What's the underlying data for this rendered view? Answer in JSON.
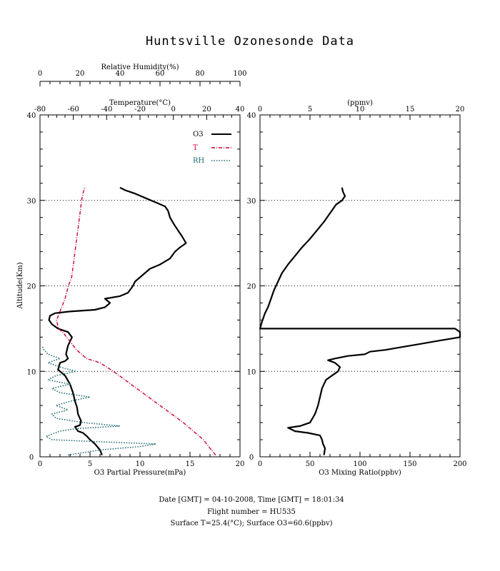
{
  "title": "Huntsville Ozonesonde Data",
  "footer": {
    "line1": "Date [GMT] = 04-10-2008,  Time [GMT] = 18:01:34",
    "line2": "Flight number = HU535",
    "line3": "Surface T=25.4(°C); Surface O3=60.6(ppbv)"
  },
  "colors": {
    "o3": "#000000",
    "temperature": "#cc0033",
    "rh": "#1f6b75",
    "grid": "#000000"
  },
  "left_panel": {
    "y_label": "Altitude(Km)",
    "y_ticks": [
      "0",
      "10",
      "20",
      "30",
      "40"
    ],
    "bottom_label": "O3 Partial Pressure(mPa)",
    "bottom_ticks": [
      "0",
      "5",
      "10",
      "15",
      "20"
    ],
    "temp_label": "Temperature(°C)",
    "temp_ticks": [
      "-80",
      "-60",
      "-40",
      "-20",
      "0",
      "20",
      "40"
    ],
    "rh_label": "Relative Humidity(%)",
    "rh_ticks": [
      "0",
      "20",
      "40",
      "60",
      "80",
      "100"
    ],
    "legend": [
      {
        "label": "O3",
        "style": "solid"
      },
      {
        "label": "T",
        "style": "dashdot"
      },
      {
        "label": "RH",
        "style": "dotted"
      }
    ]
  },
  "right_panel": {
    "bottom_label": "O3 Mixing Ratio(ppbv)",
    "bottom_ticks": [
      "0",
      "50",
      "100",
      "150",
      "200"
    ],
    "top_label": "(ppmv)",
    "top_ticks": [
      "0",
      "5",
      "10",
      "15",
      "20"
    ],
    "y_ticks": [
      "0",
      "10",
      "20",
      "30",
      "40"
    ]
  },
  "chart_data": [
    {
      "type": "line",
      "ylabel": "Altitude(Km)",
      "ylim": [
        0,
        40
      ],
      "grid_y": [
        10,
        20,
        30
      ],
      "series": [
        {
          "name": "O3",
          "axis": "O3 Partial Pressure(mPa)",
          "xlim": [
            0,
            20
          ],
          "points": [
            [
              6.2,
              0.2
            ],
            [
              6.0,
              0.8
            ],
            [
              5.5,
              1.5
            ],
            [
              5.0,
              2.0
            ],
            [
              4.7,
              2.4
            ],
            [
              4.3,
              2.8
            ],
            [
              3.8,
              3.0
            ],
            [
              3.5,
              3.5
            ],
            [
              4.0,
              3.7
            ],
            [
              4.1,
              4.2
            ],
            [
              3.8,
              5.0
            ],
            [
              3.7,
              5.8
            ],
            [
              3.5,
              6.5
            ],
            [
              3.3,
              7.5
            ],
            [
              3.0,
              8.5
            ],
            [
              2.5,
              9.5
            ],
            [
              1.8,
              10.2
            ],
            [
              2.0,
              11.0
            ],
            [
              2.5,
              11.2
            ],
            [
              2.8,
              11.5
            ],
            [
              2.6,
              12.0
            ],
            [
              2.8,
              13.0
            ],
            [
              3.0,
              13.5
            ],
            [
              3.2,
              14.0
            ],
            [
              2.8,
              14.6
            ],
            [
              1.8,
              15.0
            ],
            [
              1.2,
              15.5
            ],
            [
              0.9,
              16.0
            ],
            [
              1.0,
              16.5
            ],
            [
              1.5,
              16.8
            ],
            [
              3.0,
              17.0
            ],
            [
              5.5,
              17.2
            ],
            [
              6.5,
              17.5
            ],
            [
              7.0,
              18.0
            ],
            [
              6.5,
              18.5
            ],
            [
              8.0,
              18.8
            ],
            [
              8.8,
              19.2
            ],
            [
              9.3,
              20.0
            ],
            [
              9.5,
              20.5
            ],
            [
              10.0,
              21.0
            ],
            [
              10.5,
              21.5
            ],
            [
              11.0,
              22.0
            ],
            [
              12.0,
              22.5
            ],
            [
              13.0,
              23.2
            ],
            [
              13.5,
              24.0
            ],
            [
              14.0,
              24.5
            ],
            [
              14.6,
              25.0
            ],
            [
              14.2,
              25.8
            ],
            [
              13.8,
              26.5
            ],
            [
              13.4,
              27.2
            ],
            [
              13.0,
              28.0
            ],
            [
              12.8,
              28.8
            ],
            [
              12.5,
              29.3
            ],
            [
              11.5,
              29.8
            ],
            [
              10.5,
              30.3
            ],
            [
              9.5,
              30.8
            ],
            [
              8.5,
              31.2
            ],
            [
              8.0,
              31.5
            ]
          ]
        },
        {
          "name": "T",
          "axis": "Temperature(°C)",
          "xlim": [
            -80,
            40
          ],
          "points": [
            [
              25.4,
              0.2
            ],
            [
              22,
              1.0
            ],
            [
              18,
              2.0
            ],
            [
              12,
              3.0
            ],
            [
              6,
              4.0
            ],
            [
              -1,
              5.0
            ],
            [
              -8,
              6.0
            ],
            [
              -15,
              7.0
            ],
            [
              -22,
              8.0
            ],
            [
              -29,
              9.0
            ],
            [
              -36,
              10.0
            ],
            [
              -44,
              11.0
            ],
            [
              -52,
              11.5
            ],
            [
              -55,
              12.0
            ],
            [
              -58,
              12.5
            ],
            [
              -62,
              13.5
            ],
            [
              -64,
              14.0
            ],
            [
              -66,
              14.5
            ],
            [
              -69,
              15.0
            ],
            [
              -70,
              16.0
            ],
            [
              -68,
              17.0
            ],
            [
              -65,
              18.5
            ],
            [
              -63,
              20.0
            ],
            [
              -61,
              21.0
            ],
            [
              -60,
              22.5
            ],
            [
              -59,
              24.0
            ],
            [
              -58,
              25.5
            ],
            [
              -57,
              27.0
            ],
            [
              -56,
              28.5
            ],
            [
              -55,
              30.0
            ],
            [
              -54,
              31.0
            ],
            [
              -53,
              31.5
            ]
          ]
        },
        {
          "name": "RH",
          "axis": "Relative Humidity(%)",
          "xlim": [
            0,
            100
          ],
          "points": [
            [
              14,
              0.2
            ],
            [
              30,
              0.8
            ],
            [
              50,
              1.2
            ],
            [
              58,
              1.5
            ],
            [
              25,
              1.8
            ],
            [
              6,
              2.0
            ],
            [
              3,
              2.4
            ],
            [
              10,
              3.0
            ],
            [
              18,
              3.3
            ],
            [
              40,
              3.6
            ],
            [
              22,
              4.0
            ],
            [
              8,
              4.5
            ],
            [
              6,
              5.0
            ],
            [
              14,
              5.5
            ],
            [
              8,
              6.0
            ],
            [
              15,
              6.5
            ],
            [
              25,
              7.0
            ],
            [
              10,
              7.5
            ],
            [
              6,
              8.0
            ],
            [
              15,
              8.5
            ],
            [
              4,
              9.0
            ],
            [
              8,
              9.5
            ],
            [
              18,
              10.0
            ],
            [
              10,
              10.5
            ],
            [
              4,
              11.0
            ],
            [
              10,
              11.5
            ],
            [
              4,
              12.0
            ],
            [
              2,
              12.5
            ],
            [
              1,
              13.0
            ]
          ]
        }
      ]
    },
    {
      "type": "line",
      "xlabel": "O3 Mixing Ratio(ppbv)",
      "xlim": [
        0,
        200
      ],
      "ylim": [
        0,
        40
      ],
      "grid_y": [
        10,
        20,
        30
      ],
      "series": [
        {
          "name": "O3",
          "points": [
            [
              64,
              0.2
            ],
            [
              65,
              1.0
            ],
            [
              63,
              1.5
            ],
            [
              62,
              2.0
            ],
            [
              60,
              2.5
            ],
            [
              48,
              2.8
            ],
            [
              35,
              3.0
            ],
            [
              28,
              3.4
            ],
            [
              40,
              3.6
            ],
            [
              50,
              4.0
            ],
            [
              55,
              5.0
            ],
            [
              58,
              6.0
            ],
            [
              60,
              7.0
            ],
            [
              62,
              8.0
            ],
            [
              66,
              9.0
            ],
            [
              72,
              9.5
            ],
            [
              78,
              10.0
            ],
            [
              80,
              10.5
            ],
            [
              75,
              11.0
            ],
            [
              68,
              11.3
            ],
            [
              75,
              11.5
            ],
            [
              88,
              11.8
            ],
            [
              105,
              12.0
            ],
            [
              110,
              12.3
            ],
            [
              125,
              12.5
            ],
            [
              140,
              12.8
            ],
            [
              160,
              13.2
            ],
            [
              180,
              13.6
            ],
            [
              200,
              14.0
            ],
            [
              200,
              14.3
            ],
            [
              200,
              14.6
            ],
            [
              195,
              15.0
            ],
            [
              180,
              15.0
            ],
            [
              0,
              15.0
            ],
            [
              2,
              15.8
            ],
            [
              5,
              16.8
            ],
            [
              8,
              17.5
            ],
            [
              11,
              18.5
            ],
            [
              14,
              19.5
            ],
            [
              18,
              20.5
            ],
            [
              22,
              21.5
            ],
            [
              28,
              22.5
            ],
            [
              35,
              23.5
            ],
            [
              42,
              24.5
            ],
            [
              50,
              25.5
            ],
            [
              57,
              26.5
            ],
            [
              64,
              27.5
            ],
            [
              70,
              28.5
            ],
            [
              76,
              29.5
            ],
            [
              82,
              30.0
            ],
            [
              85,
              30.5
            ],
            [
              83,
              31.0
            ],
            [
              82,
              31.5
            ]
          ]
        }
      ]
    }
  ]
}
